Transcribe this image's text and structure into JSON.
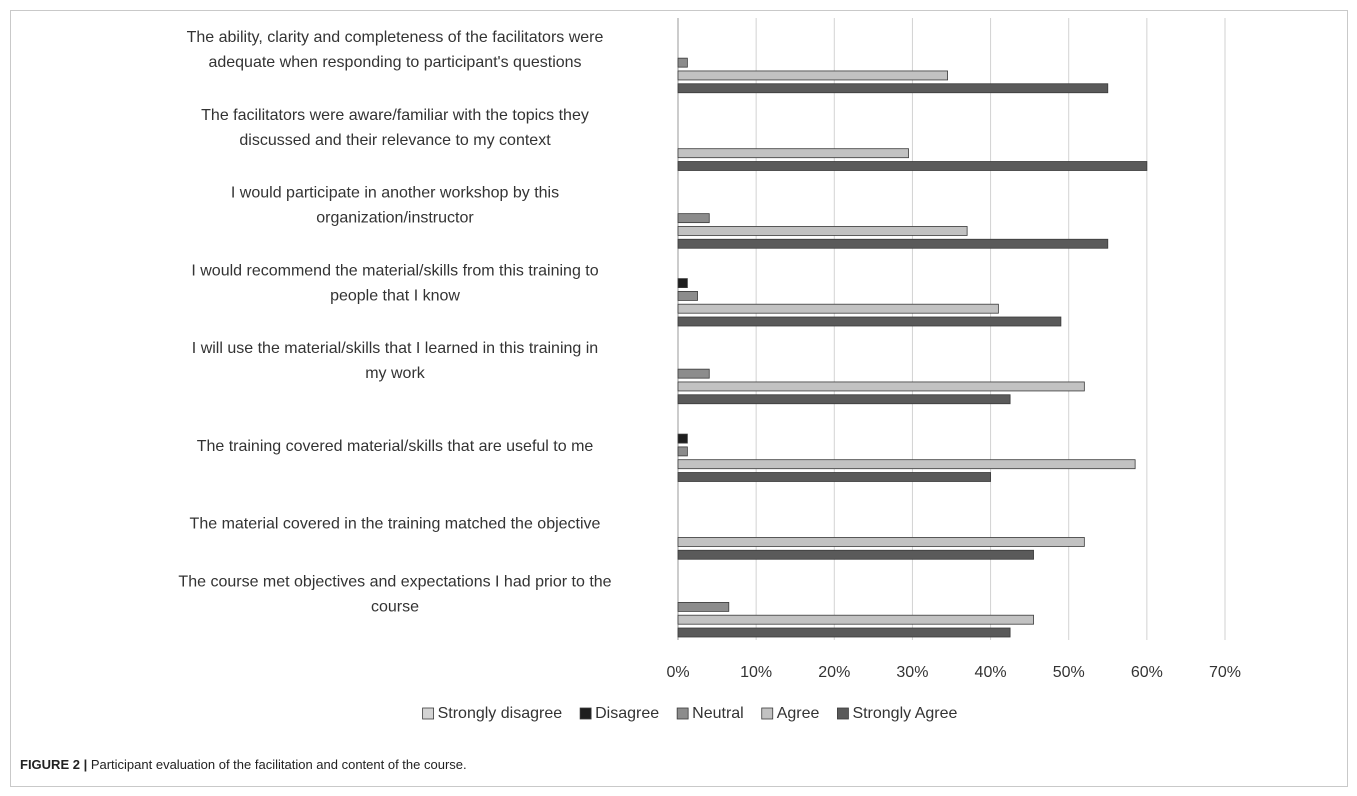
{
  "caption": {
    "label": "FIGURE 2 |",
    "text": " Participant evaluation of the facilitation and content of the course."
  },
  "chart_data": {
    "type": "bar",
    "orientation": "horizontal",
    "title": "",
    "xlabel": "",
    "ylabel": "",
    "xlim": [
      0,
      0.7
    ],
    "xticks": [
      0,
      0.1,
      0.2,
      0.3,
      0.4,
      0.5,
      0.6,
      0.7
    ],
    "xtick_labels": [
      "0%",
      "10%",
      "20%",
      "30%",
      "40%",
      "50%",
      "60%",
      "70%"
    ],
    "grid": "vertical",
    "legend_position": "bottom",
    "categories": [
      [
        "The ability, clarity and completeness of the facilitators were",
        "adequate when responding to participant's questions"
      ],
      [
        "The facilitators were aware/familiar with the topics they",
        "discussed and their relevance to my context"
      ],
      [
        "I would participate in another workshop by this",
        "organization/instructor"
      ],
      [
        "I would recommend the material/skills from this training to",
        "people that I know"
      ],
      [
        "I will use the material/skills that I learned in this training in",
        "my work"
      ],
      [
        "The training covered material/skills that are useful to me"
      ],
      [
        "The material covered in the training matched the objective"
      ],
      [
        "The course met objectives and expectations I had prior to the",
        "course"
      ]
    ],
    "series": [
      {
        "name": "Strongly disagree",
        "color": "#d4d4d4",
        "values": [
          0,
          0,
          0,
          0,
          0,
          0,
          0,
          0
        ]
      },
      {
        "name": "Disagree",
        "color": "#1e1e1e",
        "values": [
          0,
          0,
          0,
          0.012,
          0,
          0.012,
          0,
          0
        ]
      },
      {
        "name": "Neutral",
        "color": "#8c8c8c",
        "values": [
          0.012,
          0,
          0.04,
          0.025,
          0.04,
          0.012,
          0,
          0.065
        ]
      },
      {
        "name": "Agree",
        "color": "#c2c2c2",
        "values": [
          0.345,
          0.295,
          0.37,
          0.41,
          0.52,
          0.585,
          0.52,
          0.455
        ]
      },
      {
        "name": "Strongly Agree",
        "color": "#5a5a5a",
        "values": [
          0.55,
          0.6,
          0.55,
          0.49,
          0.425,
          0.4,
          0.455,
          0.425
        ]
      }
    ]
  }
}
